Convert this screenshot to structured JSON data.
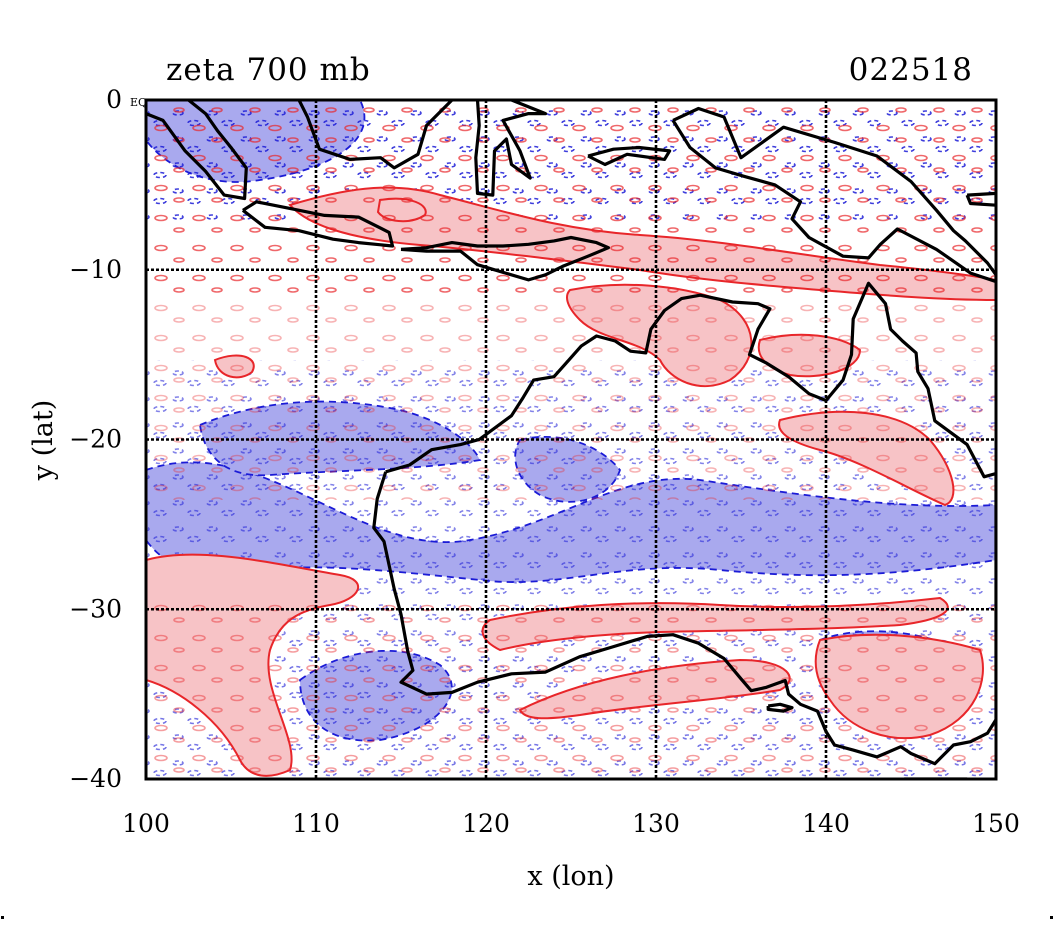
{
  "figure": {
    "title_left": "zeta 700 mb",
    "title_right": "022518",
    "origin_stub": "EQ",
    "xlabel": "x (lon)",
    "ylabel": "y (lat)"
  },
  "chart_data": {
    "type": "contour-map",
    "xlim": [
      100,
      150
    ],
    "ylim": [
      -40,
      0
    ],
    "x_ticks": [
      100,
      110,
      120,
      130,
      140,
      150
    ],
    "y_ticks": [
      0,
      -10,
      -20,
      -30,
      -40
    ],
    "x_tick_labels": [
      "100",
      "110",
      "120",
      "130",
      "140",
      "150"
    ],
    "y_tick_labels": [
      "0",
      "−10",
      "−20",
      "−30",
      "−40"
    ],
    "grid": true,
    "colors": {
      "positive_line": "#e8262a",
      "positive_fill": "#f7c3c6",
      "negative_line": "#1b1bd6",
      "negative_fill": "#a9a9ee",
      "coastline": "#000000"
    },
    "coastline": [
      {
        "name": "australia-mainland",
        "points": [
          [
            114.1,
            -21.9
          ],
          [
            113.6,
            -23.5
          ],
          [
            113.4,
            -25.2
          ],
          [
            114.0,
            -26.0
          ],
          [
            114.6,
            -28.8
          ],
          [
            115.0,
            -30.3
          ],
          [
            115.4,
            -32.5
          ],
          [
            115.7,
            -33.6
          ],
          [
            115.0,
            -34.3
          ],
          [
            116.5,
            -35.0
          ],
          [
            118.0,
            -34.9
          ],
          [
            119.5,
            -34.3
          ],
          [
            121.5,
            -33.8
          ],
          [
            123.5,
            -33.7
          ],
          [
            125.5,
            -32.8
          ],
          [
            127.5,
            -32.2
          ],
          [
            129.5,
            -31.6
          ],
          [
            131.0,
            -31.5
          ],
          [
            132.5,
            -32.0
          ],
          [
            134.0,
            -32.9
          ],
          [
            135.0,
            -34.1
          ],
          [
            135.6,
            -34.8
          ],
          [
            136.5,
            -34.6
          ],
          [
            137.6,
            -34.2
          ],
          [
            137.8,
            -35.0
          ],
          [
            138.5,
            -35.6
          ],
          [
            139.5,
            -36.0
          ],
          [
            140.0,
            -37.2
          ],
          [
            140.5,
            -38.0
          ],
          [
            141.6,
            -38.3
          ],
          [
            143.0,
            -38.7
          ],
          [
            144.4,
            -38.1
          ],
          [
            145.0,
            -38.5
          ],
          [
            146.4,
            -39.1
          ],
          [
            147.5,
            -38.0
          ],
          [
            148.5,
            -37.8
          ],
          [
            149.5,
            -37.3
          ],
          [
            150.0,
            -36.5
          ],
          [
            150.0,
            -22.0
          ],
          [
            149.3,
            -22.2
          ],
          [
            148.3,
            -20.3
          ],
          [
            146.4,
            -18.9
          ],
          [
            146.0,
            -17.0
          ],
          [
            145.4,
            -16.0
          ],
          [
            145.3,
            -14.9
          ],
          [
            144.5,
            -14.2
          ],
          [
            143.8,
            -13.5
          ],
          [
            143.5,
            -12.0
          ],
          [
            142.5,
            -10.8
          ],
          [
            142.2,
            -11.5
          ],
          [
            141.6,
            -12.9
          ],
          [
            141.5,
            -15.0
          ],
          [
            141.0,
            -16.5
          ],
          [
            140.0,
            -17.7
          ],
          [
            139.0,
            -17.3
          ],
          [
            137.8,
            -16.3
          ],
          [
            136.5,
            -15.5
          ],
          [
            135.5,
            -15.0
          ],
          [
            136.0,
            -13.5
          ],
          [
            136.7,
            -12.3
          ],
          [
            136.0,
            -12.0
          ],
          [
            134.5,
            -11.9
          ],
          [
            132.6,
            -11.5
          ],
          [
            131.5,
            -11.7
          ],
          [
            130.5,
            -12.4
          ],
          [
            129.7,
            -13.5
          ],
          [
            129.4,
            -14.9
          ],
          [
            128.5,
            -14.8
          ],
          [
            127.6,
            -14.2
          ],
          [
            126.5,
            -13.9
          ],
          [
            125.6,
            -14.5
          ],
          [
            124.8,
            -15.4
          ],
          [
            124.0,
            -16.3
          ],
          [
            122.8,
            -16.5
          ],
          [
            122.2,
            -17.5
          ],
          [
            121.5,
            -18.6
          ],
          [
            119.6,
            -20.0
          ],
          [
            118.5,
            -20.3
          ],
          [
            116.8,
            -20.6
          ],
          [
            115.5,
            -21.5
          ],
          [
            114.1,
            -21.9
          ]
        ]
      },
      {
        "name": "tasmania",
        "points": [
          [
            144.6,
            -40
          ],
          [
            146.0,
            -40
          ],
          [
            148.3,
            -40
          ]
        ]
      },
      {
        "name": "kangaroo-island",
        "points": [
          [
            136.6,
            -35.7
          ],
          [
            137.3,
            -35.6
          ],
          [
            138.0,
            -35.8
          ],
          [
            137.5,
            -36.0
          ],
          [
            136.6,
            -35.9
          ],
          [
            136.6,
            -35.7
          ]
        ]
      },
      {
        "name": "sumatra",
        "points": [
          [
            100,
            -0.8
          ],
          [
            101.0,
            -1.2
          ],
          [
            102.3,
            -3.0
          ],
          [
            103.5,
            -4.2
          ],
          [
            104.6,
            -5.6
          ],
          [
            105.8,
            -5.8
          ],
          [
            105.9,
            -4.0
          ],
          [
            105.0,
            -2.8
          ],
          [
            104.2,
            -1.8
          ],
          [
            103.5,
            -0.8
          ],
          [
            102.5,
            0
          ]
        ]
      },
      {
        "name": "java",
        "points": [
          [
            105.7,
            -6.5
          ],
          [
            107.0,
            -7.5
          ],
          [
            109.0,
            -7.7
          ],
          [
            111.0,
            -8.2
          ],
          [
            112.5,
            -8.4
          ],
          [
            114.5,
            -8.6
          ],
          [
            114.3,
            -7.8
          ],
          [
            112.5,
            -6.9
          ],
          [
            110.5,
            -6.8
          ],
          [
            108.5,
            -6.4
          ],
          [
            106.5,
            -6.0
          ],
          [
            105.7,
            -6.5
          ]
        ]
      },
      {
        "name": "lesser-sundas",
        "points": [
          [
            115.0,
            -8.8
          ],
          [
            116.5,
            -8.7
          ],
          [
            118.0,
            -8.4
          ],
          [
            119.5,
            -8.6
          ],
          [
            121.0,
            -8.6
          ],
          [
            122.5,
            -8.5
          ],
          [
            124.0,
            -8.3
          ],
          [
            125.0,
            -8.1
          ],
          [
            126.5,
            -8.4
          ],
          [
            127.2,
            -8.7
          ],
          [
            126.0,
            -9.2
          ],
          [
            124.5,
            -9.8
          ],
          [
            123.5,
            -10.3
          ],
          [
            122.5,
            -10.6
          ],
          [
            120.5,
            -10.0
          ],
          [
            119.5,
            -9.7
          ],
          [
            118.5,
            -8.9
          ],
          [
            116.5,
            -8.9
          ],
          [
            115.0,
            -8.8
          ]
        ]
      },
      {
        "name": "borneo",
        "points": [
          [
            109.0,
            0
          ],
          [
            109.5,
            -1.0
          ],
          [
            110.2,
            -2.9
          ],
          [
            112.0,
            -3.5
          ],
          [
            113.8,
            -3.4
          ],
          [
            114.6,
            -4.0
          ],
          [
            116.0,
            -3.2
          ],
          [
            116.5,
            -1.5
          ],
          [
            117.5,
            -0.5
          ],
          [
            118.0,
            0
          ]
        ]
      },
      {
        "name": "sulawesi",
        "points": [
          [
            119.5,
            0
          ],
          [
            119.6,
            -1.5
          ],
          [
            119.4,
            -3.4
          ],
          [
            119.5,
            -5.5
          ],
          [
            120.4,
            -5.6
          ],
          [
            120.5,
            -3.0
          ],
          [
            121.2,
            -2.3
          ],
          [
            121.5,
            -3.8
          ],
          [
            122.6,
            -4.6
          ],
          [
            122.0,
            -3.0
          ],
          [
            121.0,
            -1.2
          ],
          [
            122.5,
            -0.8
          ],
          [
            123.5,
            -0.8
          ],
          [
            121.5,
            0
          ]
        ]
      },
      {
        "name": "new-guinea",
        "points": [
          [
            131.0,
            -1.2
          ],
          [
            132.5,
            -0.5
          ],
          [
            134.0,
            -1.0
          ],
          [
            135.0,
            -3.4
          ],
          [
            137.5,
            -1.6
          ],
          [
            140.5,
            -2.5
          ],
          [
            143.0,
            -3.3
          ],
          [
            145.0,
            -4.8
          ],
          [
            146.5,
            -6.5
          ],
          [
            147.5,
            -7.7
          ],
          [
            148.2,
            -8.3
          ],
          [
            149.5,
            -9.6
          ],
          [
            150.0,
            -10.3
          ],
          [
            150.0,
            -10.7
          ],
          [
            148.5,
            -10.2
          ],
          [
            146.5,
            -8.8
          ],
          [
            144.2,
            -7.6
          ],
          [
            143.2,
            -8.5
          ],
          [
            142.5,
            -9.3
          ],
          [
            141.0,
            -9.2
          ],
          [
            139.0,
            -8.1
          ],
          [
            138.0,
            -7.0
          ],
          [
            138.5,
            -6.0
          ],
          [
            137.0,
            -5.0
          ],
          [
            135.2,
            -4.5
          ],
          [
            133.5,
            -4.0
          ],
          [
            132.0,
            -2.8
          ],
          [
            131.0,
            -1.2
          ]
        ]
      },
      {
        "name": "new-britain",
        "points": [
          [
            148.3,
            -5.6
          ],
          [
            150.0,
            -5.5
          ],
          [
            150.0,
            -6.2
          ],
          [
            148.5,
            -6.1
          ],
          [
            148.3,
            -5.6
          ]
        ]
      },
      {
        "name": "seram-buru",
        "points": [
          [
            126.0,
            -3.3
          ],
          [
            127.0,
            -3.8
          ],
          [
            128.3,
            -3.2
          ],
          [
            130.5,
            -3.5
          ],
          [
            130.8,
            -3.0
          ],
          [
            129.0,
            -2.8
          ],
          [
            127.5,
            -2.9
          ],
          [
            126.0,
            -3.3
          ]
        ]
      }
    ]
  }
}
